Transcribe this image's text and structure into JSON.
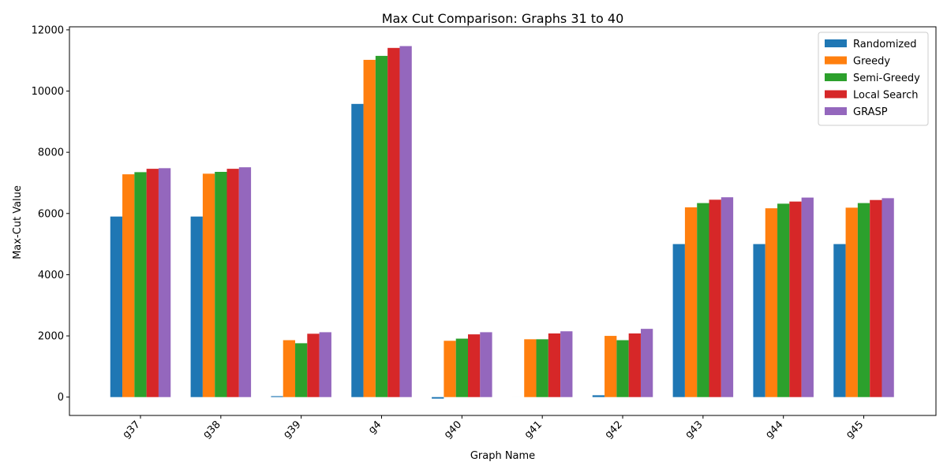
{
  "chart_data": {
    "type": "bar",
    "title": "Max Cut Comparison: Graphs 31 to 40",
    "xlabel": "Graph Name",
    "ylabel": "Max-Cut Value",
    "ylim": [
      -600,
      12100
    ],
    "yticks": [
      0,
      2000,
      4000,
      6000,
      8000,
      10000,
      12000
    ],
    "grid": false,
    "legend_position": "top-right",
    "categories": [
      "g37",
      "g38",
      "g39",
      "g4",
      "g40",
      "g41",
      "g42",
      "g43",
      "g44",
      "g45"
    ],
    "series": [
      {
        "name": "Randomized",
        "color": "#1f77b4",
        "values": [
          5900,
          5900,
          30,
          9580,
          -50,
          0,
          60,
          5000,
          5000,
          5000
        ]
      },
      {
        "name": "Greedy",
        "color": "#ff7f0e",
        "values": [
          7280,
          7300,
          1860,
          11020,
          1840,
          1890,
          2000,
          6200,
          6170,
          6190
        ]
      },
      {
        "name": "Semi-Greedy",
        "color": "#2ca02c",
        "values": [
          7350,
          7360,
          1760,
          11150,
          1910,
          1890,
          1860,
          6340,
          6320,
          6340
        ]
      },
      {
        "name": "Local Search",
        "color": "#d62728",
        "values": [
          7460,
          7460,
          2070,
          11410,
          2050,
          2080,
          2080,
          6450,
          6390,
          6440
        ]
      },
      {
        "name": "GRASP",
        "color": "#9467bd",
        "values": [
          7480,
          7510,
          2120,
          11470,
          2120,
          2150,
          2230,
          6530,
          6520,
          6500
        ]
      }
    ]
  }
}
